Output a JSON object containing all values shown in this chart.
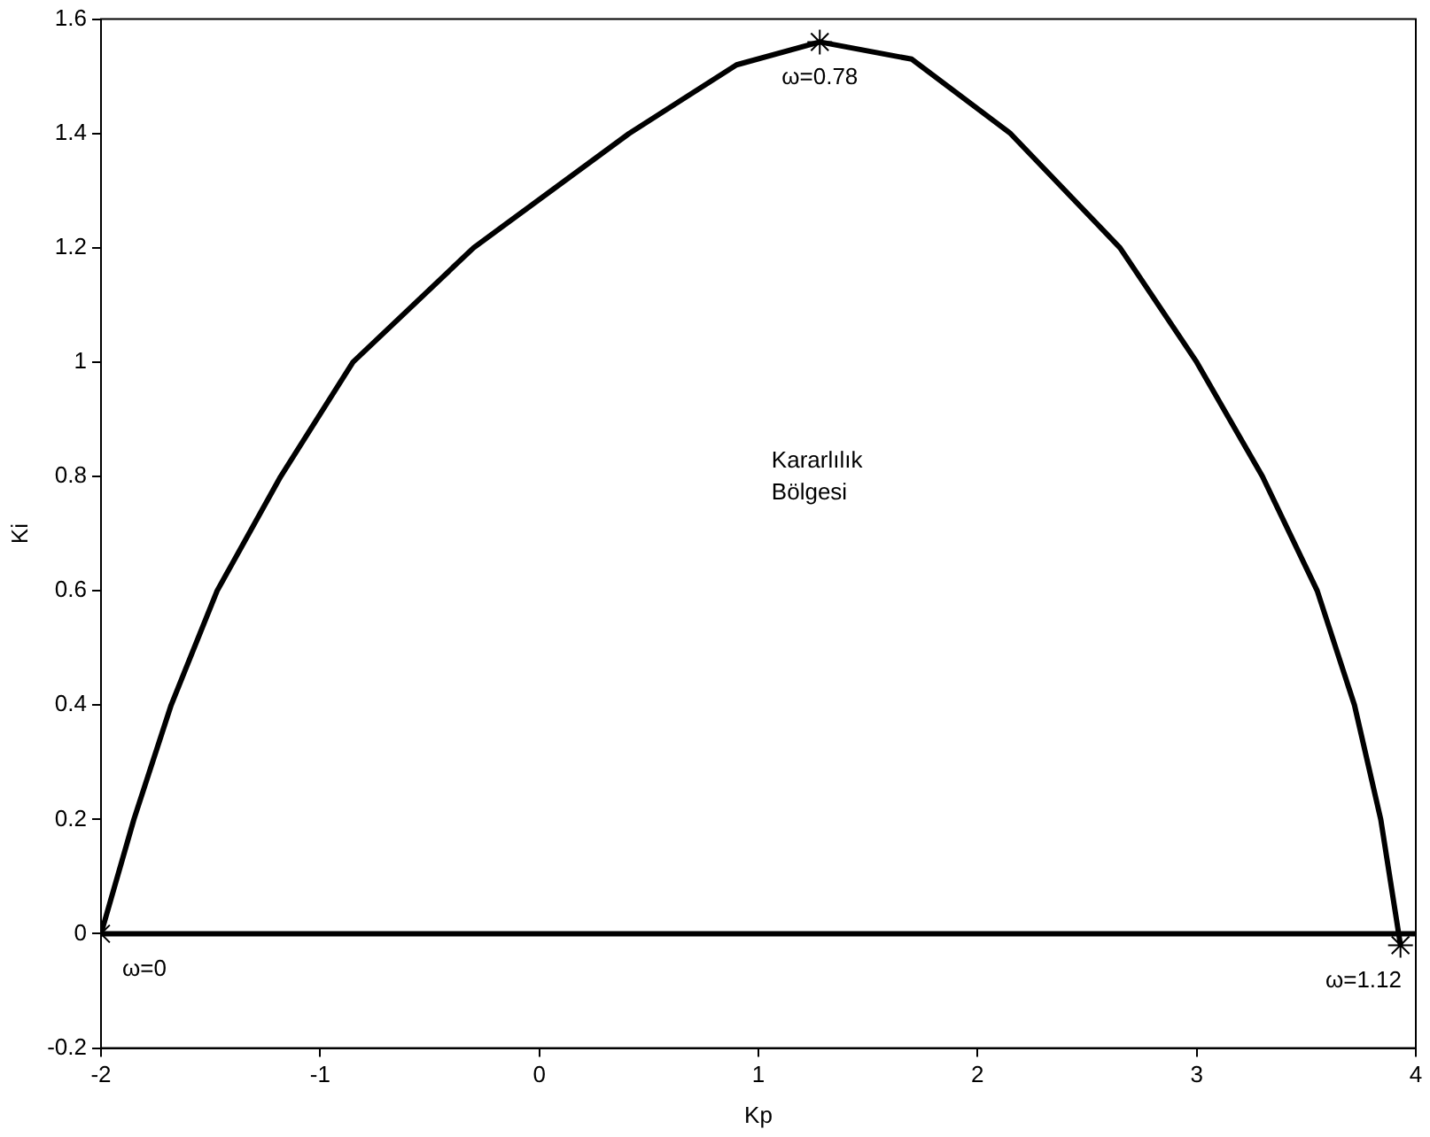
{
  "chart_data": {
    "type": "line",
    "xlabel": "Kp",
    "ylabel": "Ki",
    "xlim": [
      -2,
      4
    ],
    "ylim": [
      -0.2,
      1.6
    ],
    "xticks": [
      -2,
      -1,
      0,
      1,
      2,
      3,
      4
    ],
    "yticks": [
      -0.2,
      0,
      0.2,
      0.4,
      0.6,
      0.8,
      1,
      1.2,
      1.4,
      1.6
    ],
    "grid": false,
    "legend": false,
    "series": [
      {
        "type": "line",
        "color": "#000000",
        "marker": "none",
        "x": [
          -2,
          -1.85,
          -1.68,
          -1.47,
          -1.18,
          -0.85,
          -0.3,
          0.41,
          0.9,
          1.28,
          1.7,
          2.15,
          2.65,
          3.0,
          3.3,
          3.55,
          3.72,
          3.84,
          3.93
        ],
        "values": [
          0,
          0.2,
          0.4,
          0.6,
          0.8,
          1.0,
          1.2,
          1.4,
          1.52,
          1.56,
          1.53,
          1.4,
          1.2,
          1.0,
          0.8,
          0.6,
          0.4,
          0.2,
          -0.02
        ]
      },
      {
        "type": "line",
        "color": "#000000",
        "marker": "none",
        "x": [
          -2,
          4
        ],
        "values": [
          0,
          0
        ]
      },
      {
        "type": "scatter",
        "color": "#000000",
        "marker": "cross",
        "x": [
          -2,
          1.28,
          3.93
        ],
        "values": [
          0,
          1.56,
          -0.02
        ]
      }
    ],
    "annotations": [
      {
        "text": "ω=0",
        "x": -2,
        "y": 0
      },
      {
        "text": "ω=0.78",
        "x": 1.28,
        "y": 1.56
      },
      {
        "text": "ω=1.12",
        "x": 3.93,
        "y": -0.02
      },
      "Kararlılık\nBölgesi"
    ]
  }
}
